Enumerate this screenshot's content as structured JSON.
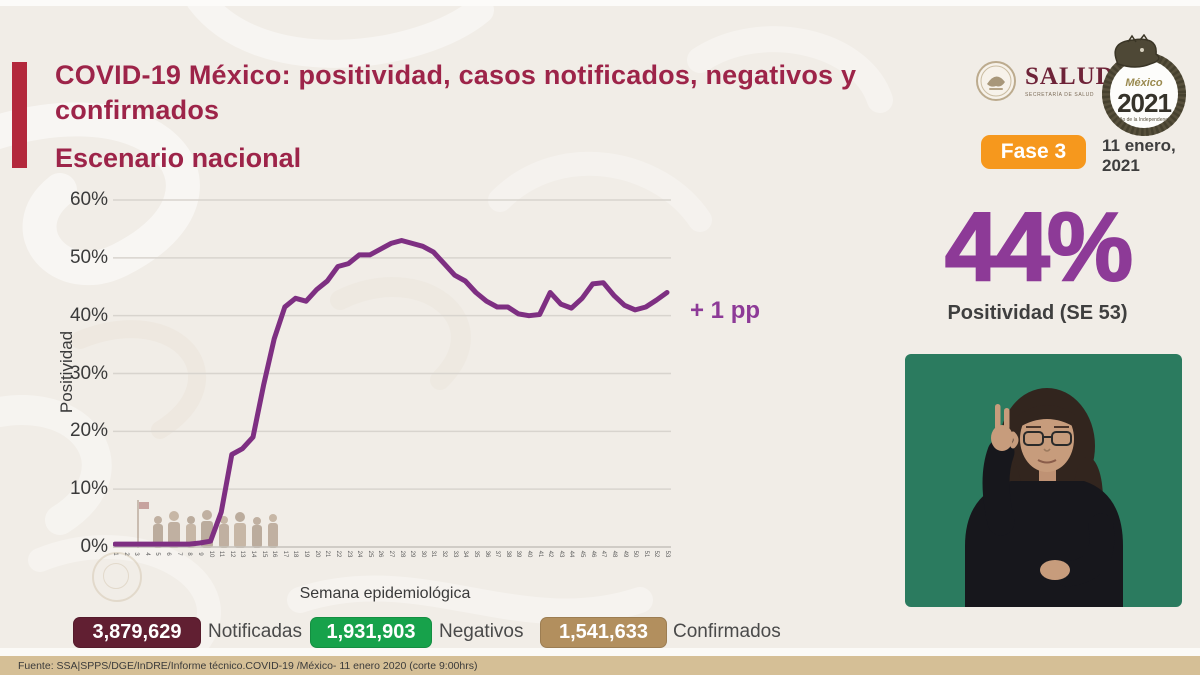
{
  "header": {
    "title": "COVID-19 México: positividad, casos notificados, negativos y confirmados",
    "subtitle": "Escenario nacional",
    "phase_badge": "Fase 3",
    "date_line1": "11 enero,",
    "date_line2": "2021",
    "salud": {
      "name": "SALUD",
      "caption": "SECRETARÍA DE SALUD"
    },
    "mexico2021": {
      "country": "México",
      "year": "2021",
      "tagline": "Año de la Independencia"
    }
  },
  "highlight": {
    "value": "44%",
    "label": "Positividad (SE 53)"
  },
  "chart_data": {
    "type": "line",
    "xlabel": "Semana epidemiológica",
    "ylabel": "Positividad",
    "annotation": "+ 1 pp",
    "ylim": [
      0,
      60
    ],
    "grid": true,
    "yticks": [
      "0%",
      "10%",
      "20%",
      "30%",
      "40%",
      "50%",
      "60%"
    ],
    "x": [
      1,
      2,
      3,
      4,
      5,
      6,
      7,
      8,
      9,
      10,
      11,
      12,
      13,
      14,
      15,
      16,
      17,
      18,
      19,
      20,
      21,
      22,
      23,
      24,
      25,
      26,
      27,
      28,
      29,
      30,
      31,
      32,
      33,
      34,
      35,
      36,
      37,
      38,
      39,
      40,
      41,
      42,
      43,
      44,
      45,
      46,
      47,
      48,
      49,
      50,
      51,
      52,
      53
    ],
    "series": [
      {
        "name": "Positividad",
        "color": "#7e2f82",
        "values": [
          0.5,
          0.5,
          0.5,
          0.5,
          0.5,
          0.5,
          0.5,
          0.5,
          0.7,
          1,
          6,
          16,
          17,
          19,
          28,
          36,
          41.5,
          43,
          42.5,
          44.5,
          46,
          48.5,
          49,
          50.5,
          50.5,
          51.5,
          52.5,
          53,
          52.5,
          52,
          51,
          49,
          47,
          46,
          44,
          42.5,
          41.5,
          41.5,
          40.3,
          40,
          40.2,
          44,
          42,
          41.3,
          43,
          45.5,
          45.7,
          43.5,
          41.8,
          41,
          41.5,
          42.7,
          44
        ]
      }
    ]
  },
  "stats": [
    {
      "value": "3,879,629",
      "label": "Notificadas",
      "color": "#611f32"
    },
    {
      "value": "1,931,903",
      "label": "Negativos",
      "color": "#17a24b"
    },
    {
      "value": "1,541,633",
      "label": "Confirmados",
      "color": "#b28f5e"
    }
  ],
  "footer": {
    "source": "Fuente: SSA|SPPS/DGE/InDRE/Informe técnico.COVID-19 /México- 11 enero 2020 (corte 9:00hrs)"
  },
  "colors": {
    "page_bg": "#f1ede7",
    "accent_bar": "#b3283c",
    "title": "#9d2449",
    "line_purple": "#7e2f82",
    "big_purple": "#8d3a97",
    "badge_orange": "#f6981d",
    "footer_bg": "#d5bf96",
    "video_bg": "#2b7b5f"
  }
}
